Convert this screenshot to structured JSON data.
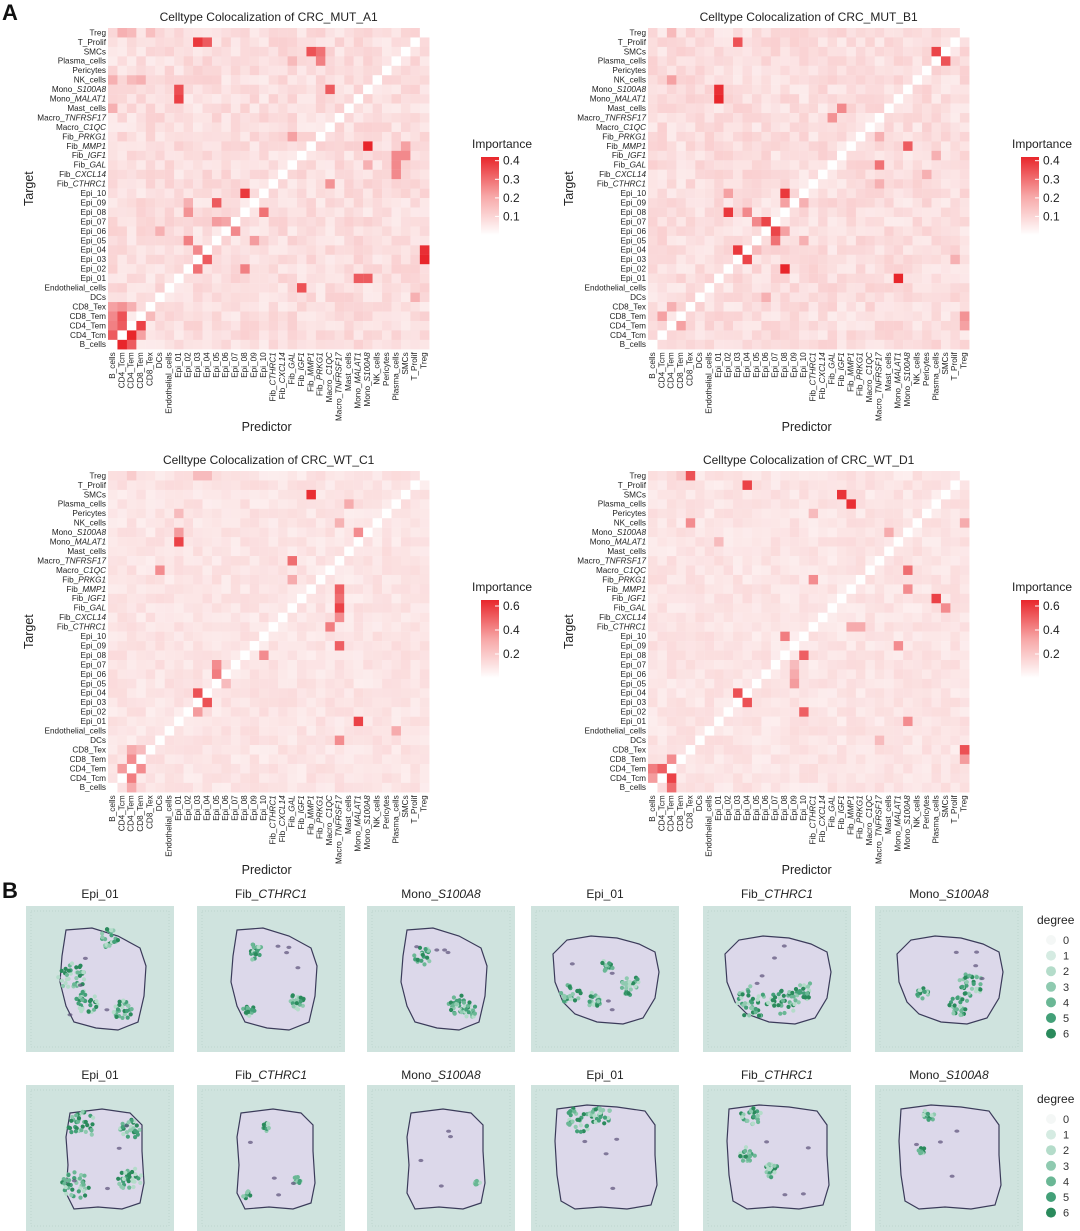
{
  "panel_labels": [
    "A",
    "B"
  ],
  "heatmap_axes": {
    "xlabel": "Predictor",
    "ylabel": "Target"
  },
  "heatmap_rows": [
    "Treg",
    "T_Prolif",
    "SMCs",
    "Plasma_cells",
    "Pericytes",
    "NK_cells",
    "Mono_S100A8",
    "Mono_MALAT1",
    "Mast_cells",
    "Macro_TNFRSF17",
    "Macro_C1QC",
    "Fib_PRKG1",
    "Fib_MMP1",
    "Fib_IGF1",
    "Fib_GAL",
    "Fib_CXCL14",
    "Fib_CTHRC1",
    "Epi_10",
    "Epi_09",
    "Epi_08",
    "Epi_07",
    "Epi_06",
    "Epi_05",
    "Epi_04",
    "Epi_03",
    "Epi_02",
    "Epi_01",
    "Endothelial_cells",
    "DCs",
    "CD8_Tex",
    "CD8_Tem",
    "CD4_Tem",
    "CD4_Tcm",
    "B_cells"
  ],
  "heatmap_cols": [
    "B_cells",
    "CD4_Tcm",
    "CD4_Tem",
    "CD8_Tem",
    "CD8_Tex",
    "DCs",
    "Endothelial_cells",
    "Epi_01",
    "Epi_02",
    "Epi_03",
    "Epi_04",
    "Epi_05",
    "Epi_06",
    "Epi_07",
    "Epi_08",
    "Epi_09",
    "Epi_10",
    "Fib_CTHRC1",
    "Fib_CXCL14",
    "Fib_GAL",
    "Fib_IGF1",
    "Fib_MMP1",
    "Fib_PRKG1",
    "Macro_C1QC",
    "Macro_TNFRSF17",
    "Mast_cells",
    "Mono_MALAT1",
    "Mono_S100A8",
    "NK_cells",
    "Pericytes",
    "Plasma_cells",
    "SMCs",
    "T_Prolif",
    "Treg"
  ],
  "heatmap_legend": {
    "title": "Importance"
  },
  "colors": {
    "high": "#e8262b",
    "low": "#fdf2f2",
    "diag": "#ffffff",
    "tissue_bg": "#cfe3de",
    "tissue": "#dcd8ea",
    "spot_green": "#4aa87a"
  },
  "chart_data": [
    {
      "type": "heatmap",
      "title": "Celltype Colocalization of CRC_MUT_A1",
      "xlabel": "Predictor",
      "ylabel": "Target",
      "legend_ticks": [
        0.4,
        0.3,
        0.2,
        0.1
      ],
      "vmax": 0.42,
      "highlights": [
        [
          "Treg",
          "CD4_Tcm",
          0.12
        ],
        [
          "Treg",
          "CD4_Tem",
          0.1
        ],
        [
          "Treg",
          "CD8_Tex",
          0.09
        ],
        [
          "T_Prolif",
          "Epi_03",
          0.38
        ],
        [
          "T_Prolif",
          "Epi_04",
          0.3
        ],
        [
          "SMCs",
          "Fib_MMP1",
          0.32
        ],
        [
          "SMCs",
          "Fib_PRKG1",
          0.25
        ],
        [
          "Plasma_cells",
          "Fib_PRKG1",
          0.22
        ],
        [
          "Plasma_cells",
          "Fib_GAL",
          0.1
        ],
        [
          "NK_cells",
          "B_cells",
          0.12
        ],
        [
          "NK_cells",
          "CD4_Tem",
          0.1
        ],
        [
          "NK_cells",
          "CD8_Tem",
          0.12
        ],
        [
          "Mono_S100A8",
          "Epi_01",
          0.33
        ],
        [
          "Mono_S100A8",
          "Macro_C1QC",
          0.3
        ],
        [
          "Mono_MALAT1",
          "Epi_01",
          0.36
        ],
        [
          "Mast_cells",
          "B_cells",
          0.12
        ],
        [
          "Fib_PRKG1",
          "Fib_GAL",
          0.15
        ],
        [
          "Fib_MMP1",
          "Mono_S100A8",
          0.42
        ],
        [
          "Fib_MMP1",
          "SMCs",
          0.15
        ],
        [
          "Fib_IGF1",
          "SMCs",
          0.2
        ],
        [
          "Fib_IGF1",
          "Plasma_cells",
          0.2
        ],
        [
          "Fib_GAL",
          "Plasma_cells",
          0.2
        ],
        [
          "Fib_GAL",
          "Mono_S100A8",
          0.12
        ],
        [
          "Fib_CXCL14",
          "Plasma_cells",
          0.2
        ],
        [
          "Fib_CTHRC1",
          "Macro_C1QC",
          0.18
        ],
        [
          "Epi_10",
          "Epi_08",
          0.38
        ],
        [
          "Epi_09",
          "Epi_05",
          0.3
        ],
        [
          "Epi_09",
          "Epi_02",
          0.12
        ],
        [
          "Epi_08",
          "Epi_10",
          0.25
        ],
        [
          "Epi_08",
          "Epi_02",
          0.18
        ],
        [
          "Epi_07",
          "Epi_05",
          0.16
        ],
        [
          "Epi_07",
          "Epi_06",
          0.14
        ],
        [
          "Epi_06",
          "Epi_07",
          0.2
        ],
        [
          "Epi_06",
          "DCs",
          0.12
        ],
        [
          "Epi_05",
          "Epi_02",
          0.22
        ],
        [
          "Epi_05",
          "Epi_09",
          0.16
        ],
        [
          "Epi_04",
          "Epi_03",
          0.2
        ],
        [
          "Epi_04",
          "Treg",
          0.4
        ],
        [
          "Epi_03",
          "Epi_04",
          0.3
        ],
        [
          "Epi_03",
          "Treg",
          0.42
        ],
        [
          "Epi_02",
          "Epi_03",
          0.25
        ],
        [
          "Epi_02",
          "Epi_08",
          0.22
        ],
        [
          "Epi_01",
          "Mono_S100A8",
          0.3
        ],
        [
          "Epi_01",
          "Mono_MALAT1",
          0.3
        ],
        [
          "Endothelial_cells",
          "Fib_IGF1",
          0.32
        ],
        [
          "DCs",
          "T_Prolif",
          0.12
        ],
        [
          "CD8_Tex",
          "B_cells",
          0.15
        ],
        [
          "CD8_Tex",
          "CD4_Tcm",
          0.18
        ],
        [
          "CD8_Tex",
          "CD4_Tem",
          0.12
        ],
        [
          "CD8_Tem",
          "B_cells",
          0.2
        ],
        [
          "CD8_Tem",
          "CD4_Tcm",
          0.32
        ],
        [
          "CD8_Tem",
          "CD8_Tex",
          0.1
        ],
        [
          "CD4_Tem",
          "B_cells",
          0.22
        ],
        [
          "CD4_Tem",
          "CD4_Tcm",
          0.3
        ],
        [
          "CD4_Tem",
          "CD8_Tem",
          0.36
        ],
        [
          "CD4_Tcm",
          "B_cells",
          0.3
        ],
        [
          "CD4_Tcm",
          "CD4_Tem",
          0.42
        ],
        [
          "CD4_Tcm",
          "CD8_Tem",
          0.15
        ],
        [
          "B_cells",
          "CD4_Tcm",
          0.42
        ],
        [
          "B_cells",
          "CD4_Tem",
          0.3
        ]
      ]
    },
    {
      "type": "heatmap",
      "title": "Celltype Colocalization of CRC_MUT_B1",
      "xlabel": "Predictor",
      "ylabel": "Target",
      "legend_ticks": [
        0.4,
        0.3,
        0.2,
        0.1
      ],
      "vmax": 0.42,
      "highlights": [
        [
          "Treg",
          "CD4_Tem",
          0.1
        ],
        [
          "T_Prolif",
          "Epi_03",
          0.32
        ],
        [
          "SMCs",
          "SMCs",
          0.0
        ],
        [
          "SMCs",
          "Plasma_cells",
          0.35
        ],
        [
          "Plasma_cells",
          "SMCs",
          0.32
        ],
        [
          "NK_cells",
          "CD4_Tem",
          0.15
        ],
        [
          "Pericytes",
          "Pericytes",
          0.0
        ],
        [
          "Mono_S100A8",
          "Epi_01",
          0.4
        ],
        [
          "Mono_MALAT1",
          "Epi_01",
          0.42
        ],
        [
          "Mast_cells",
          "Fib_IGF1",
          0.2
        ],
        [
          "Macro_TNFRSF17",
          "Fib_GAL",
          0.18
        ],
        [
          "Fib_PRKG1",
          "Macro_TNFRSF17",
          0.12
        ],
        [
          "Fib_MMP1",
          "Mono_S100A8",
          0.3
        ],
        [
          "Fib_IGF1",
          "Plasma_cells",
          0.12
        ],
        [
          "Fib_GAL",
          "Macro_TNFRSF17",
          0.25
        ],
        [
          "Fib_CXCL14",
          "Pericytes",
          0.12
        ],
        [
          "Fib_CTHRC1",
          "Macro_TNFRSF17",
          0.12
        ],
        [
          "Epi_10",
          "Epi_08",
          0.38
        ],
        [
          "Epi_10",
          "Epi_02",
          0.15
        ],
        [
          "Epi_09",
          "Epi_08",
          0.15
        ],
        [
          "Epi_09",
          "Epi_10",
          0.12
        ],
        [
          "Epi_08",
          "Epi_02",
          0.38
        ],
        [
          "Epi_08",
          "Epi_04",
          0.2
        ],
        [
          "Epi_07",
          "Epi_06",
          0.35
        ],
        [
          "Epi_07",
          "Epi_05",
          0.2
        ],
        [
          "Epi_06",
          "Epi_07",
          0.35
        ],
        [
          "Epi_06",
          "Epi_08",
          0.15
        ],
        [
          "Epi_05",
          "Epi_07",
          0.25
        ],
        [
          "Epi_05",
          "Epi_10",
          0.12
        ],
        [
          "Epi_04",
          "Epi_03",
          0.38
        ],
        [
          "Epi_04",
          "Epi_05",
          0.1
        ],
        [
          "Epi_03",
          "Epi_04",
          0.35
        ],
        [
          "Epi_03",
          "T_Prolif",
          0.12
        ],
        [
          "Epi_02",
          "Epi_08",
          0.42
        ],
        [
          "Epi_01",
          "Mono_MALAT1",
          0.42
        ],
        [
          "DCs",
          "Epi_06",
          0.12
        ],
        [
          "CD8_Tex",
          "CD4_Tem",
          0.12
        ],
        [
          "CD8_Tem",
          "CD4_Tcm",
          0.15
        ],
        [
          "CD4_Tem",
          "CD4_Tem",
          0.0
        ],
        [
          "CD4_Tem",
          "CD8_Tem",
          0.15
        ],
        [
          "CD8_Tem",
          "Treg",
          0.18
        ],
        [
          "CD4_Tem",
          "Treg",
          0.15
        ]
      ]
    },
    {
      "type": "heatmap",
      "title": "Celltype Colocalization of CRC_WT_C1",
      "xlabel": "Predictor",
      "ylabel": "Target",
      "legend_ticks": [
        0.6,
        0.4,
        0.2
      ],
      "vmax": 0.65,
      "highlights": [
        [
          "Treg",
          "CD4_Tem",
          0.1
        ],
        [
          "Treg",
          "Epi_03",
          0.15
        ],
        [
          "Treg",
          "Epi_04",
          0.15
        ],
        [
          "SMCs",
          "Fib_MMP1",
          0.62
        ],
        [
          "Plasma_cells",
          "Mast_cells",
          0.2
        ],
        [
          "Pericytes",
          "Epi_01",
          0.15
        ],
        [
          "NK_cells",
          "Macro_TNFRSF17",
          0.18
        ],
        [
          "Mono_S100A8",
          "Epi_01",
          0.25
        ],
        [
          "Mono_S100A8",
          "Mono_MALAT1",
          0.3
        ],
        [
          "Mono_MALAT1",
          "Epi_01",
          0.55
        ],
        [
          "Macro_TNFRSF17",
          "Fib_GAL",
          0.4
        ],
        [
          "Macro_C1QC",
          "DCs",
          0.3
        ],
        [
          "Fib_PRKG1",
          "Fib_GAL",
          0.2
        ],
        [
          "Fib_MMP1",
          "Macro_TNFRSF17",
          0.45
        ],
        [
          "Fib_IGF1",
          "Macro_TNFRSF17",
          0.4
        ],
        [
          "Fib_GAL",
          "Macro_TNFRSF17",
          0.55
        ],
        [
          "Fib_CXCL14",
          "Macro_TNFRSF17",
          0.3
        ],
        [
          "Fib_CTHRC1",
          "Macro_C1QC",
          0.35
        ],
        [
          "Epi_09",
          "Macro_TNFRSF17",
          0.45
        ],
        [
          "Epi_08",
          "Epi_10",
          0.3
        ],
        [
          "Epi_07",
          "Epi_05",
          0.3
        ],
        [
          "Epi_06",
          "Epi_05",
          0.35
        ],
        [
          "Epi_05",
          "Epi_06",
          0.15
        ],
        [
          "Epi_04",
          "Epi_03",
          0.5
        ],
        [
          "Epi_03",
          "Epi_04",
          0.5
        ],
        [
          "Epi_02",
          "Epi_03",
          0.25
        ],
        [
          "Epi_01",
          "Mono_MALAT1",
          0.55
        ],
        [
          "Endothelial_cells",
          "Plasma_cells",
          0.2
        ],
        [
          "DCs",
          "Macro_TNFRSF17",
          0.3
        ],
        [
          "CD8_Tex",
          "CD4_Tem",
          0.2
        ],
        [
          "CD8_Tex",
          "CD8_Tem",
          0.15
        ],
        [
          "CD8_Tem",
          "CD4_Tem",
          0.3
        ],
        [
          "CD4_Tem",
          "CD4_Tcm",
          0.25
        ],
        [
          "CD4_Tem",
          "CD8_Tem",
          0.3
        ],
        [
          "CD4_Tcm",
          "CD4_Tem",
          0.35
        ],
        [
          "B_cells",
          "CD4_Tem",
          0.2
        ]
      ]
    },
    {
      "type": "heatmap",
      "title": "Celltype Colocalization of CRC_WT_D1",
      "xlabel": "Predictor",
      "ylabel": "Target",
      "legend_ticks": [
        0.6,
        0.4,
        0.2
      ],
      "vmax": 0.65,
      "highlights": [
        [
          "Treg",
          "CD8_Tem",
          0.1
        ],
        [
          "Treg",
          "CD8_Tex",
          0.5
        ],
        [
          "T_Prolif",
          "Epi_04",
          0.55
        ],
        [
          "SMCs",
          "Fib_IGF1",
          0.6
        ],
        [
          "Plasma_cells",
          "Fib_MMP1",
          0.62
        ],
        [
          "Pericytes",
          "Fib_CTHRC1",
          0.15
        ],
        [
          "NK_cells",
          "CD8_Tex",
          0.3
        ],
        [
          "NK_cells",
          "Treg",
          0.2
        ],
        [
          "Mono_S100A8",
          "Mast_cells",
          0.2
        ],
        [
          "Mono_MALAT1",
          "Epi_01",
          0.15
        ],
        [
          "Macro_C1QC",
          "Mono_S100A8",
          0.4
        ],
        [
          "Fib_PRKG1",
          "Fib_CTHRC1",
          0.3
        ],
        [
          "Fib_MMP1",
          "Mono_S100A8",
          0.3
        ],
        [
          "Fib_IGF1",
          "Plasma_cells",
          0.55
        ],
        [
          "Fib_GAL",
          "SMCs",
          0.3
        ],
        [
          "Fib_CTHRC1",
          "Fib_MMP1",
          0.2
        ],
        [
          "Fib_CTHRC1",
          "Fib_PRKG1",
          0.2
        ],
        [
          "Epi_10",
          "Epi_08",
          0.35
        ],
        [
          "Epi_09",
          "Mono_MALAT1",
          0.3
        ],
        [
          "Epi_08",
          "Epi_10",
          0.45
        ],
        [
          "Epi_07",
          "Epi_09",
          0.15
        ],
        [
          "Epi_06",
          "Epi_09",
          0.2
        ],
        [
          "Epi_05",
          "Epi_09",
          0.25
        ],
        [
          "Epi_04",
          "Epi_03",
          0.5
        ],
        [
          "Epi_03",
          "Epi_04",
          0.5
        ],
        [
          "Epi_02",
          "Epi_10",
          0.45
        ],
        [
          "Epi_01",
          "Mono_S100A8",
          0.3
        ],
        [
          "DCs",
          "Macro_TNFRSF17",
          0.15
        ],
        [
          "CD8_Tex",
          "Treg",
          0.5
        ],
        [
          "CD8_Tem",
          "Treg",
          0.25
        ],
        [
          "CD8_Tem",
          "CD4_Tem",
          0.3
        ],
        [
          "CD4_Tem",
          "B_cells",
          0.35
        ],
        [
          "CD4_Tem",
          "CD4_Tcm",
          0.45
        ],
        [
          "CD4_Tcm",
          "CD4_Tem",
          0.55
        ],
        [
          "CD4_Tcm",
          "B_cells",
          0.25
        ],
        [
          "B_cells",
          "CD4_Tem",
          0.4
        ]
      ]
    }
  ],
  "panel_b": {
    "titles": [
      "Epi_01",
      "Fib_CTHRC1",
      "Mono_S100A8",
      "Epi_01",
      "Fib_CTHRC1",
      "Mono_S100A8"
    ],
    "legend_title": "degree",
    "legend_levels": [
      "0",
      "1",
      "2",
      "3",
      "4",
      "5",
      "6"
    ],
    "legend_colors": [
      "#f4f7f6",
      "#d5ebe2",
      "#b4dcca",
      "#8fcab0",
      "#6ab795",
      "#43a078",
      "#2a8a5c"
    ]
  }
}
